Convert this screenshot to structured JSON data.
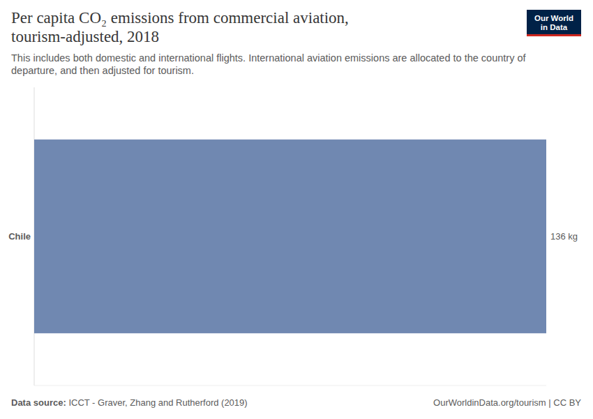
{
  "chart_data": {
    "type": "bar",
    "orientation": "horizontal",
    "title": "Per capita CO₂ emissions from commercial aviation, tourism-adjusted, 2018",
    "subtitle": "This includes both domestic and international flights. International aviation emissions are allocated to the country of departure, and then adjusted for tourism.",
    "categories": [
      "Chile"
    ],
    "values": [
      136
    ],
    "value_labels": [
      "136 kg"
    ],
    "color": "#7088b1",
    "xlim": [
      0,
      136
    ],
    "data_labels": true,
    "tick_labels": "y",
    "grid": false,
    "source_label": "Data source:",
    "source": "ICCT - Graver, Zhang and Rutherford (2019)",
    "footer": "OurWorldinData.org/tourism | CC BY",
    "logo": [
      "Our World",
      "in Data"
    ]
  }
}
